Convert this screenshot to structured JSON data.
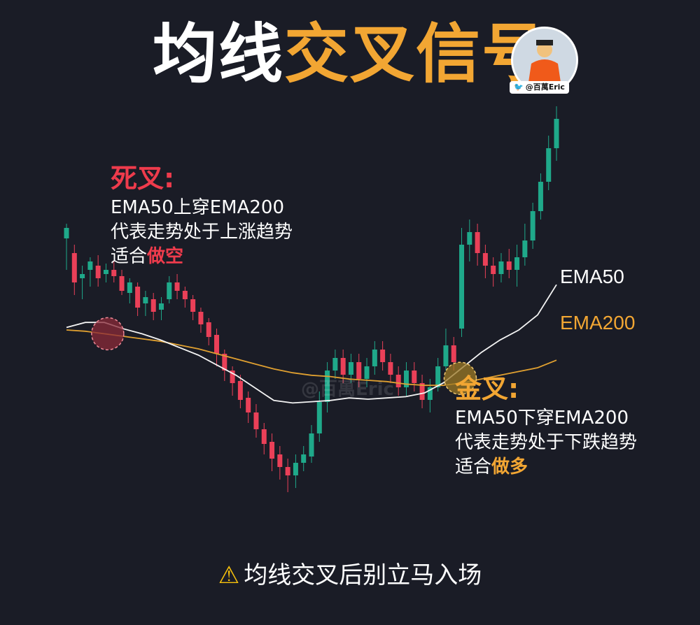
{
  "header": {
    "title_part1": "均线",
    "title_part2": "交叉信号",
    "handle": "@百萬Eric"
  },
  "death_cross": {
    "title": "死叉:",
    "line1": "EMA50上穿EMA200",
    "line2": "代表走势处于上涨趋势",
    "line3_prefix": "适合",
    "line3_action": "做空"
  },
  "golden_cross": {
    "title": "金叉:",
    "line1": "EMA50下穿EMA200",
    "line2": "代表走势处于下跌趋势",
    "line3_prefix": "适合",
    "line3_action": "做多"
  },
  "footer": {
    "warning": "均线交叉后别立马入场"
  },
  "watermark": "@百萬Eric",
  "colors": {
    "background": "#1a1c26",
    "bull": "#1fa98a",
    "bear": "#ea4058",
    "ema50": "#f4f4f4",
    "ema200": "#e0a030",
    "death_marker": "#8b2a38",
    "golden_marker": "#9c7a25"
  },
  "chart_data": {
    "type": "line",
    "series": [
      {
        "name": "EMA50",
        "values": [
          0.62,
          0.66,
          0.66,
          0.61,
          0.57,
          0.52,
          0.46,
          0.4,
          0.32,
          0.24,
          0.14,
          0.04,
          0.02,
          0.03,
          0.04,
          0.06,
          0.05,
          0.06,
          0.07,
          0.1,
          0.18,
          0.3,
          0.42,
          0.52,
          0.6,
          0.72,
          0.96
        ]
      },
      {
        "name": "EMA200",
        "values": [
          0.6,
          0.59,
          0.57,
          0.55,
          0.53,
          0.51,
          0.48,
          0.45,
          0.41,
          0.37,
          0.33,
          0.29,
          0.26,
          0.24,
          0.23,
          0.21,
          0.2,
          0.19,
          0.17,
          0.16,
          0.16,
          0.18,
          0.21,
          0.24,
          0.27,
          0.3,
          0.36
        ]
      }
    ],
    "markers": [
      {
        "label": "死叉",
        "x_index": 2
      },
      {
        "label": "金叉",
        "x_index": 20
      }
    ],
    "candles": [
      [
        0.73,
        0.78,
        0.58,
        0.8
      ],
      [
        0.66,
        0.52,
        0.46,
        0.7
      ],
      [
        0.54,
        0.56,
        0.44,
        0.6
      ],
      [
        0.58,
        0.62,
        0.5,
        0.64
      ],
      [
        0.6,
        0.54,
        0.5,
        0.65
      ],
      [
        0.56,
        0.58,
        0.52,
        0.61
      ],
      [
        0.58,
        0.55,
        0.52,
        0.62
      ],
      [
        0.55,
        0.48,
        0.46,
        0.58
      ],
      [
        0.47,
        0.52,
        0.42,
        0.54
      ],
      [
        0.5,
        0.4,
        0.36,
        0.52
      ],
      [
        0.42,
        0.45,
        0.36,
        0.48
      ],
      [
        0.44,
        0.38,
        0.34,
        0.47
      ],
      [
        0.39,
        0.42,
        0.34,
        0.45
      ],
      [
        0.44,
        0.52,
        0.42,
        0.55
      ],
      [
        0.52,
        0.48,
        0.44,
        0.56
      ],
      [
        0.48,
        0.44,
        0.4,
        0.5
      ],
      [
        0.44,
        0.38,
        0.34,
        0.46
      ],
      [
        0.38,
        0.32,
        0.28,
        0.4
      ],
      [
        0.33,
        0.26,
        0.22,
        0.35
      ],
      [
        0.27,
        0.18,
        0.12,
        0.3
      ],
      [
        0.18,
        0.1,
        0.05,
        0.2
      ],
      [
        0.1,
        0.04,
        -0.02,
        0.12
      ],
      [
        0.05,
        -0.04,
        -0.08,
        0.08
      ],
      [
        -0.03,
        -0.1,
        -0.15,
        0.0
      ],
      [
        -0.1,
        -0.18,
        -0.22,
        -0.06
      ],
      [
        -0.18,
        -0.25,
        -0.3,
        -0.15
      ],
      [
        -0.24,
        -0.32,
        -0.38,
        -0.2
      ],
      [
        -0.3,
        -0.36,
        -0.42,
        -0.26
      ],
      [
        -0.36,
        -0.4,
        -0.48,
        -0.32
      ],
      [
        -0.4,
        -0.34,
        -0.46,
        -0.3
      ],
      [
        -0.34,
        -0.3,
        -0.38,
        -0.26
      ],
      [
        -0.31,
        -0.2,
        -0.34,
        -0.16
      ],
      [
        -0.2,
        -0.05,
        -0.24,
        0.0
      ],
      [
        -0.05,
        0.1,
        -0.1,
        0.14
      ],
      [
        0.1,
        0.16,
        0.06,
        0.2
      ],
      [
        0.16,
        0.08,
        0.04,
        0.2
      ],
      [
        0.08,
        0.14,
        0.04,
        0.18
      ],
      [
        0.14,
        0.06,
        0.02,
        0.18
      ],
      [
        0.06,
        0.12,
        0.02,
        0.16
      ],
      [
        0.12,
        0.2,
        0.08,
        0.24
      ],
      [
        0.2,
        0.14,
        0.1,
        0.24
      ],
      [
        0.14,
        0.08,
        0.04,
        0.18
      ],
      [
        0.08,
        0.02,
        -0.02,
        0.12
      ],
      [
        0.02,
        0.1,
        -0.02,
        0.14
      ],
      [
        0.1,
        0.04,
        0.0,
        0.14
      ],
      [
        0.04,
        -0.04,
        -0.08,
        0.08
      ],
      [
        -0.04,
        0.02,
        -0.1,
        0.06
      ],
      [
        0.02,
        0.12,
        0.0,
        0.16
      ],
      [
        0.12,
        0.22,
        0.1,
        0.3
      ],
      [
        0.22,
        0.14,
        0.1,
        0.26
      ],
      [
        0.3,
        0.7,
        0.26,
        0.78
      ],
      [
        0.7,
        0.76,
        0.62,
        0.82
      ],
      [
        0.76,
        0.66,
        0.6,
        0.8
      ],
      [
        0.66,
        0.6,
        0.54,
        0.7
      ],
      [
        0.6,
        0.56,
        0.5,
        0.64
      ],
      [
        0.56,
        0.62,
        0.52,
        0.66
      ],
      [
        0.62,
        0.58,
        0.54,
        0.68
      ],
      [
        0.58,
        0.64,
        0.5,
        0.7
      ],
      [
        0.64,
        0.72,
        0.6,
        0.8
      ],
      [
        0.72,
        0.86,
        0.68,
        0.9
      ],
      [
        0.86,
        1.0,
        0.82,
        1.04
      ],
      [
        1.0,
        1.16,
        0.96,
        1.22
      ],
      [
        1.16,
        1.3,
        1.1,
        1.36
      ]
    ]
  }
}
